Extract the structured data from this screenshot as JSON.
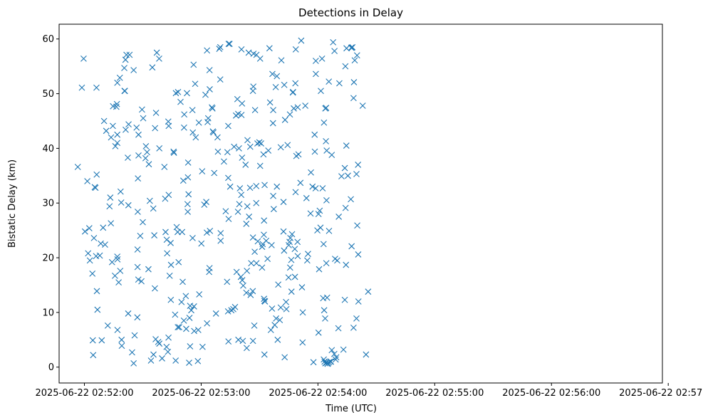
{
  "chart_data": {
    "type": "scatter",
    "title": "Detections in Delay",
    "xlabel": "Time (UTC)",
    "ylabel": "Bistatic Delay (km)",
    "marker": "x",
    "color": "#1f77b4",
    "grid": false,
    "xlim": [
      "2025-06-22 02:51:47",
      "2025-06-22 02:56:57"
    ],
    "ylim": [
      -2.9,
      62.7
    ],
    "xticks": [
      "2025-06-22 02:52:00",
      "2025-06-22 02:53:00",
      "2025-06-22 02:54:00",
      "2025-06-22 02:55:00",
      "2025-06-22 02:56:00",
      "2025-06-22 02:57:00"
    ],
    "yticks": [
      0,
      10,
      20,
      30,
      40,
      50,
      60
    ],
    "x_units": "seconds after 2025-06-22 02:51:00",
    "points": [
      [
        56.6,
        36.6
      ],
      [
        58.7,
        51.1
      ],
      [
        59.6,
        56.4
      ],
      [
        60.3,
        24.8
      ],
      [
        61.5,
        34.0
      ],
      [
        61.9,
        20.8
      ],
      [
        62.5,
        25.4
      ],
      [
        62.8,
        19.5
      ],
      [
        64.1,
        17.1
      ],
      [
        64.3,
        4.9
      ],
      [
        64.5,
        2.2
      ],
      [
        64.9,
        23.6
      ],
      [
        65.3,
        32.9
      ],
      [
        65.7,
        32.8
      ],
      [
        66.0,
        20.3
      ],
      [
        66.2,
        51.1
      ],
      [
        66.3,
        35.2
      ],
      [
        66.4,
        13.9
      ],
      [
        66.7,
        10.5
      ],
      [
        67.9,
        20.4
      ],
      [
        68.4,
        22.6
      ],
      [
        68.9,
        4.9
      ],
      [
        69.6,
        25.5
      ],
      [
        70.1,
        45.0
      ],
      [
        70.6,
        22.4
      ],
      [
        71.2,
        43.2
      ],
      [
        72.0,
        7.6
      ],
      [
        72.9,
        29.4
      ],
      [
        73.3,
        31.0
      ],
      [
        73.6,
        26.3
      ],
      [
        73.7,
        42.0
      ],
      [
        74.2,
        19.2
      ],
      [
        74.6,
        44.1
      ],
      [
        74.7,
        47.7
      ],
      [
        75.7,
        16.7
      ],
      [
        75.9,
        40.4
      ],
      [
        76.4,
        47.6
      ],
      [
        76.7,
        48.1
      ],
      [
        76.9,
        42.5
      ],
      [
        76.9,
        41.0
      ],
      [
        76.9,
        52.0
      ],
      [
        76.9,
        20.2
      ],
      [
        77.0,
        19.7
      ],
      [
        77.0,
        6.8
      ],
      [
        77.6,
        15.5
      ],
      [
        78.2,
        52.9
      ],
      [
        78.4,
        17.6
      ],
      [
        78.6,
        32.1
      ],
      [
        78.9,
        30.1
      ],
      [
        79.1,
        5.0
      ],
      [
        79.2,
        3.9
      ],
      [
        80.5,
        54.7
      ],
      [
        80.6,
        50.5
      ],
      [
        80.8,
        50.5
      ],
      [
        81.1,
        56.2
      ],
      [
        81.2,
        43.4
      ],
      [
        81.6,
        57.1
      ],
      [
        82.3,
        38.3
      ],
      [
        82.5,
        9.8
      ],
      [
        82.6,
        29.6
      ],
      [
        82.7,
        44.4
      ],
      [
        83.2,
        57.1
      ],
      [
        84.5,
        2.7
      ],
      [
        85.3,
        54.3
      ],
      [
        85.3,
        0.7
      ],
      [
        85.8,
        5.8
      ],
      [
        86.8,
        43.8
      ],
      [
        87.2,
        9.1
      ],
      [
        87.3,
        18.3
      ],
      [
        87.3,
        21.5
      ],
      [
        87.4,
        28.4
      ],
      [
        87.5,
        34.5
      ],
      [
        87.7,
        16.0
      ],
      [
        87.8,
        38.7
      ],
      [
        87.8,
        42.5
      ],
      [
        88.7,
        24.0
      ],
      [
        89.3,
        15.7
      ],
      [
        89.6,
        47.1
      ],
      [
        90.0,
        26.5
      ],
      [
        90.2,
        45.5
      ],
      [
        91.4,
        38.2
      ],
      [
        91.6,
        40.4
      ],
      [
        92.2,
        39.3
      ],
      [
        92.9,
        17.9
      ],
      [
        93.1,
        37.1
      ],
      [
        93.6,
        30.4
      ],
      [
        94.2,
        1.2
      ],
      [
        94.9,
        54.8
      ],
      [
        95.4,
        29.0
      ],
      [
        95.5,
        2.3
      ],
      [
        95.9,
        24.1
      ],
      [
        96.2,
        14.4
      ],
      [
        96.3,
        43.7
      ],
      [
        96.6,
        5.1
      ],
      [
        96.8,
        46.5
      ],
      [
        97.2,
        57.5
      ],
      [
        97.9,
        4.6
      ],
      [
        98.4,
        56.4
      ],
      [
        98.5,
        4.3
      ],
      [
        98.5,
        40.0
      ],
      [
        99.9,
        1.6
      ],
      [
        101.1,
        36.6
      ],
      [
        101.5,
        30.8
      ],
      [
        101.7,
        24.7
      ],
      [
        102.2,
        3.7
      ],
      [
        102.3,
        23.3
      ],
      [
        102.5,
        20.8
      ],
      [
        102.9,
        2.8
      ],
      [
        103.1,
        44.9
      ],
      [
        103.2,
        5.4
      ],
      [
        103.3,
        44.1
      ],
      [
        103.3,
        31.5
      ],
      [
        103.8,
        16.7
      ],
      [
        104.3,
        22.7
      ],
      [
        104.4,
        12.3
      ],
      [
        104.5,
        18.7
      ],
      [
        105.8,
        39.4
      ],
      [
        106.0,
        39.2
      ],
      [
        106.6,
        9.6
      ],
      [
        106.9,
        1.2
      ],
      [
        107.0,
        50.1
      ],
      [
        107.4,
        25.6
      ],
      [
        107.9,
        24.7
      ],
      [
        108.0,
        7.3
      ],
      [
        108.1,
        50.3
      ],
      [
        108.4,
        19.2
      ],
      [
        108.7,
        7.3
      ],
      [
        109.4,
        48.5
      ],
      [
        109.9,
        11.9
      ],
      [
        110.2,
        24.7
      ],
      [
        110.5,
        15.6
      ],
      [
        110.8,
        34.1
      ],
      [
        111.1,
        8.5
      ],
      [
        111.2,
        43.8
      ],
      [
        111.3,
        46.2
      ],
      [
        112.1,
        13.0
      ],
      [
        112.3,
        7.0
      ],
      [
        112.7,
        50.1
      ],
      [
        113.0,
        29.8
      ],
      [
        113.1,
        28.4
      ],
      [
        113.2,
        34.7
      ],
      [
        113.3,
        37.4
      ],
      [
        113.5,
        31.6
      ],
      [
        113.8,
        0.8
      ],
      [
        114.0,
        9.0
      ],
      [
        114.3,
        11.2
      ],
      [
        114.3,
        3.8
      ],
      [
        114.9,
        10.4
      ],
      [
        115.5,
        47.0
      ],
      [
        115.6,
        23.6
      ],
      [
        115.7,
        42.9
      ],
      [
        116.1,
        55.3
      ],
      [
        116.3,
        11.1
      ],
      [
        116.4,
        6.6
      ],
      [
        116.9,
        51.8
      ],
      [
        117.2,
        42.0
      ],
      [
        118.3,
        1.1
      ],
      [
        118.5,
        6.8
      ],
      [
        118.8,
        44.7
      ],
      [
        119.0,
        13.3
      ],
      [
        120.1,
        22.6
      ],
      [
        120.5,
        35.8
      ],
      [
        120.7,
        3.7
      ],
      [
        121.6,
        29.7
      ],
      [
        122.2,
        49.8
      ],
      [
        122.6,
        30.2
      ],
      [
        122.9,
        24.6
      ],
      [
        123.0,
        57.9
      ],
      [
        123.0,
        8.0
      ],
      [
        123.3,
        44.8
      ],
      [
        123.6,
        45.5
      ],
      [
        124.1,
        17.4
      ],
      [
        124.3,
        54.3
      ],
      [
        124.3,
        18.1
      ],
      [
        124.4,
        50.8
      ],
      [
        124.5,
        24.9
      ],
      [
        125.5,
        47.5
      ],
      [
        125.8,
        47.3
      ],
      [
        126.0,
        43.1
      ],
      [
        126.3,
        42.9
      ],
      [
        126.7,
        35.5
      ],
      [
        127.6,
        9.8
      ],
      [
        128.4,
        42.0
      ],
      [
        128.6,
        39.4
      ],
      [
        129.3,
        58.2
      ],
      [
        129.8,
        52.6
      ],
      [
        129.8,
        58.5
      ],
      [
        130.0,
        24.5
      ],
      [
        130.0,
        23.1
      ],
      [
        131.7,
        37.6
      ],
      [
        132.6,
        28.5
      ],
      [
        133.3,
        15.6
      ],
      [
        133.5,
        39.3
      ],
      [
        133.8,
        10.2
      ],
      [
        133.9,
        44.1
      ],
      [
        133.9,
        34.6
      ],
      [
        134.0,
        4.7
      ],
      [
        134.1,
        27.1
      ],
      [
        134.1,
        59.1
      ],
      [
        134.6,
        59.1
      ],
      [
        134.9,
        33.0
      ],
      [
        135.5,
        10.4
      ],
      [
        136.5,
        10.6
      ],
      [
        136.9,
        40.3
      ],
      [
        137.4,
        11.0
      ],
      [
        137.9,
        46.0
      ],
      [
        138.2,
        17.4
      ],
      [
        138.6,
        49.0
      ],
      [
        138.9,
        28.4
      ],
      [
        139.0,
        46.3
      ],
      [
        139.1,
        5.0
      ],
      [
        139.4,
        40.0
      ],
      [
        139.6,
        29.8
      ],
      [
        139.9,
        32.7
      ],
      [
        140.4,
        16.5
      ],
      [
        140.6,
        31.5
      ],
      [
        140.7,
        46.1
      ],
      [
        140.7,
        58.1
      ],
      [
        141.0,
        38.3
      ],
      [
        141.0,
        48.2
      ],
      [
        141.1,
        15.9
      ],
      [
        141.4,
        4.8
      ],
      [
        141.6,
        14.9
      ],
      [
        142.8,
        37.0
      ],
      [
        143.2,
        13.6
      ],
      [
        143.2,
        26.2
      ],
      [
        143.4,
        3.5
      ],
      [
        143.5,
        17.6
      ],
      [
        143.7,
        29.4
      ],
      [
        143.8,
        41.5
      ],
      [
        144.4,
        57.5
      ],
      [
        144.6,
        27.5
      ],
      [
        145.1,
        32.8
      ],
      [
        145.2,
        40.3
      ],
      [
        145.4,
        13.2
      ],
      [
        145.7,
        19.0
      ],
      [
        146.5,
        13.9
      ],
      [
        146.6,
        23.7
      ],
      [
        146.6,
        4.8
      ],
      [
        146.6,
        50.5
      ],
      [
        146.8,
        51.3
      ],
      [
        146.9,
        57.3
      ],
      [
        147.3,
        7.6
      ],
      [
        147.5,
        21.1
      ],
      [
        147.7,
        47.0
      ],
      [
        148.3,
        33.1
      ],
      [
        148.3,
        30.0
      ],
      [
        148.4,
        57.1
      ],
      [
        148.4,
        19.0
      ],
      [
        148.9,
        40.9
      ],
      [
        149.1,
        23.0
      ],
      [
        149.9,
        41.1
      ],
      [
        150.3,
        36.8
      ],
      [
        150.3,
        56.4
      ],
      [
        150.8,
        40.9
      ],
      [
        151.3,
        22.0
      ],
      [
        151.3,
        18.2
      ],
      [
        151.6,
        22.5
      ],
      [
        152.0,
        38.9
      ],
      [
        152.2,
        24.2
      ],
      [
        152.3,
        26.8
      ],
      [
        152.3,
        12.5
      ],
      [
        152.5,
        2.3
      ],
      [
        152.5,
        12.1
      ],
      [
        152.6,
        33.3
      ],
      [
        152.8,
        12.0
      ],
      [
        153.4,
        23.1
      ],
      [
        154.1,
        19.8
      ],
      [
        154.5,
        39.6
      ],
      [
        155.1,
        58.3
      ],
      [
        155.4,
        48.4
      ],
      [
        155.8,
        6.8
      ],
      [
        156.2,
        22.3
      ],
      [
        156.4,
        10.7
      ],
      [
        156.6,
        53.6
      ],
      [
        156.9,
        44.6
      ],
      [
        157.0,
        31.3
      ],
      [
        157.0,
        47.0
      ],
      [
        157.3,
        28.9
      ],
      [
        157.8,
        7.7
      ],
      [
        158.3,
        51.2
      ],
      [
        158.5,
        8.9
      ],
      [
        158.9,
        53.2
      ],
      [
        158.9,
        33.0
      ],
      [
        159.3,
        5.0
      ],
      [
        159.6,
        15.1
      ],
      [
        160.4,
        8.6
      ],
      [
        160.9,
        10.9
      ],
      [
        160.9,
        40.2
      ],
      [
        161.2,
        56.1
      ],
      [
        162.3,
        30.2
      ],
      [
        162.3,
        24.8
      ],
      [
        162.6,
        21.3
      ],
      [
        162.7,
        51.6
      ],
      [
        162.9,
        1.8
      ],
      [
        163.1,
        45.2
      ],
      [
        163.6,
        11.9
      ],
      [
        163.8,
        10.6
      ],
      [
        164.4,
        40.6
      ],
      [
        164.9,
        16.4
      ],
      [
        165.0,
        22.3
      ],
      [
        165.4,
        22.9
      ],
      [
        165.6,
        46.2
      ],
      [
        165.7,
        18.2
      ],
      [
        165.8,
        23.6
      ],
      [
        166.3,
        19.6
      ],
      [
        166.4,
        13.8
      ],
      [
        166.7,
        24.3
      ],
      [
        167.1,
        50.2
      ],
      [
        167.2,
        50.3
      ],
      [
        167.6,
        47.3
      ],
      [
        168.1,
        21.6
      ],
      [
        168.2,
        16.5
      ],
      [
        168.4,
        51.9
      ],
      [
        168.5,
        32.0
      ],
      [
        168.6,
        58.1
      ],
      [
        168.9,
        38.6
      ],
      [
        169.5,
        22.9
      ],
      [
        169.6,
        47.5
      ],
      [
        169.6,
        20.3
      ],
      [
        170.0,
        38.9
      ],
      [
        171.0,
        33.7
      ],
      [
        171.4,
        59.7
      ],
      [
        171.8,
        14.6
      ],
      [
        172.1,
        4.5
      ],
      [
        172.2,
        10.0
      ],
      [
        173.5,
        47.8
      ],
      [
        174.1,
        30.9
      ],
      [
        174.5,
        19.5
      ],
      [
        174.9,
        20.7
      ],
      [
        176.2,
        28.1
      ],
      [
        176.4,
        35.6
      ],
      [
        177.2,
        33.0
      ],
      [
        177.7,
        0.9
      ],
      [
        178.3,
        42.5
      ],
      [
        178.4,
        39.4
      ],
      [
        178.8,
        32.7
      ],
      [
        178.9,
        53.6
      ],
      [
        178.9,
        56.0
      ],
      [
        179.7,
        25.0
      ],
      [
        180.3,
        28.0
      ],
      [
        180.3,
        6.3
      ],
      [
        180.6,
        17.9
      ],
      [
        180.9,
        28.6
      ],
      [
        181.3,
        25.5
      ],
      [
        181.5,
        50.5
      ],
      [
        182.1,
        56.4
      ],
      [
        182.4,
        32.7
      ],
      [
        182.7,
        12.6
      ],
      [
        182.9,
        22.5
      ],
      [
        183.0,
        1.4
      ],
      [
        183.1,
        44.7
      ],
      [
        183.2,
        10.4
      ],
      [
        183.4,
        1.0
      ],
      [
        183.7,
        8.9
      ],
      [
        183.8,
        47.3
      ],
      [
        183.8,
        0.7
      ],
      [
        184.1,
        41.3
      ],
      [
        184.2,
        47.4
      ],
      [
        184.3,
        19.0
      ],
      [
        184.4,
        0.8
      ],
      [
        184.4,
        30.5
      ],
      [
        184.5,
        39.6
      ],
      [
        184.7,
        12.7
      ],
      [
        184.9,
        0.6
      ],
      [
        185.2,
        0.7
      ],
      [
        185.6,
        52.2
      ],
      [
        185.6,
        0.9
      ],
      [
        185.7,
        24.9
      ],
      [
        186.4,
        1.0
      ],
      [
        186.7,
        1.0
      ],
      [
        187.1,
        3.1
      ],
      [
        187.1,
        38.8
      ],
      [
        187.8,
        59.4
      ],
      [
        188.4,
        2.4
      ],
      [
        188.5,
        57.8
      ],
      [
        188.8,
        19.8
      ],
      [
        189.1,
        1.4
      ],
      [
        189.4,
        1.8
      ],
      [
        189.9,
        19.5
      ],
      [
        190.5,
        7.1
      ],
      [
        190.7,
        27.5
      ],
      [
        191.0,
        51.9
      ],
      [
        192.1,
        34.9
      ],
      [
        193.1,
        3.2
      ],
      [
        193.8,
        36.4
      ],
      [
        193.8,
        12.3
      ],
      [
        194.1,
        55.0
      ],
      [
        194.2,
        29.1
      ],
      [
        194.4,
        18.7
      ],
      [
        194.6,
        40.5
      ],
      [
        194.7,
        58.3
      ],
      [
        195.4,
        35.0
      ],
      [
        196.9,
        30.7
      ],
      [
        197.1,
        58.4
      ],
      [
        197.3,
        22.1
      ],
      [
        197.5,
        58.4
      ],
      [
        197.7,
        58.5
      ],
      [
        198.3,
        7.2
      ],
      [
        198.3,
        49.2
      ],
      [
        198.5,
        52.1
      ],
      [
        198.9,
        56.1
      ],
      [
        199.8,
        8.9
      ],
      [
        199.8,
        35.3
      ],
      [
        200.1,
        57.0
      ],
      [
        200.2,
        25.9
      ],
      [
        200.6,
        37.0
      ],
      [
        200.7,
        20.6
      ],
      [
        200.8,
        12.0
      ],
      [
        203.0,
        47.8
      ],
      [
        204.7,
        2.3
      ],
      [
        205.8,
        13.8
      ]
    ]
  }
}
